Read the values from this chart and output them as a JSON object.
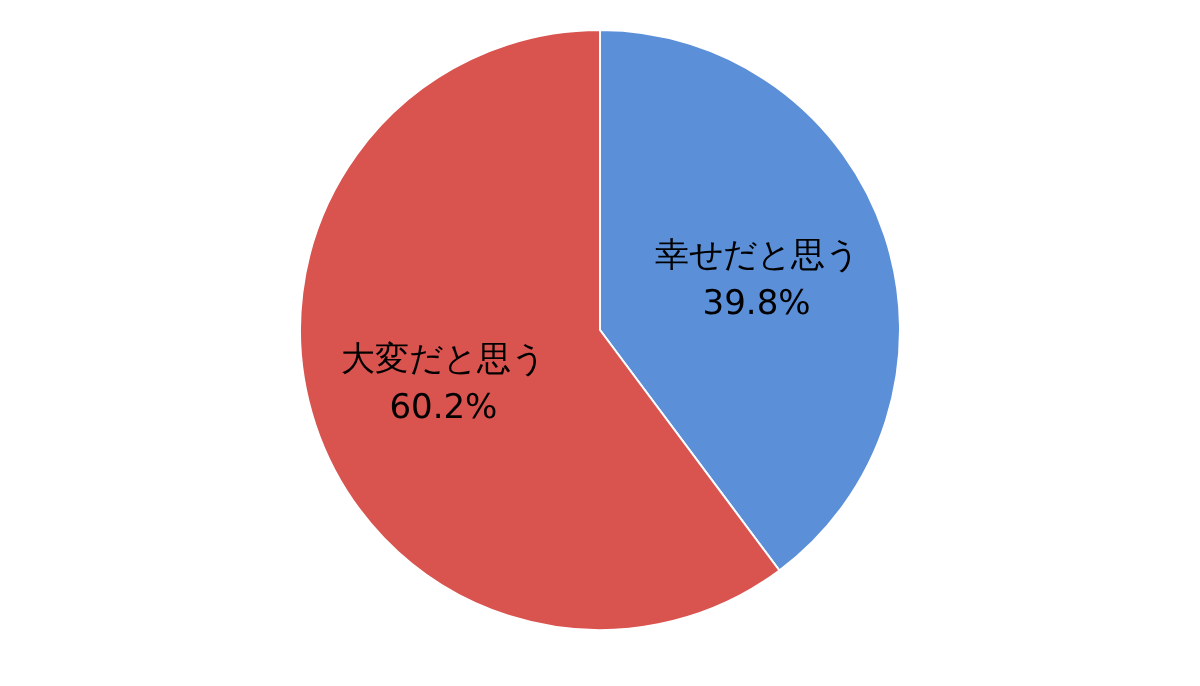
{
  "chart_data": {
    "type": "pie",
    "categories": [
      "幸せだと思う",
      "大変だと思う"
    ],
    "values": [
      39.8,
      60.2
    ],
    "value_labels": [
      "39.8%",
      "60.2%"
    ],
    "colors": [
      "#5b8fd8",
      "#d9534f"
    ]
  }
}
